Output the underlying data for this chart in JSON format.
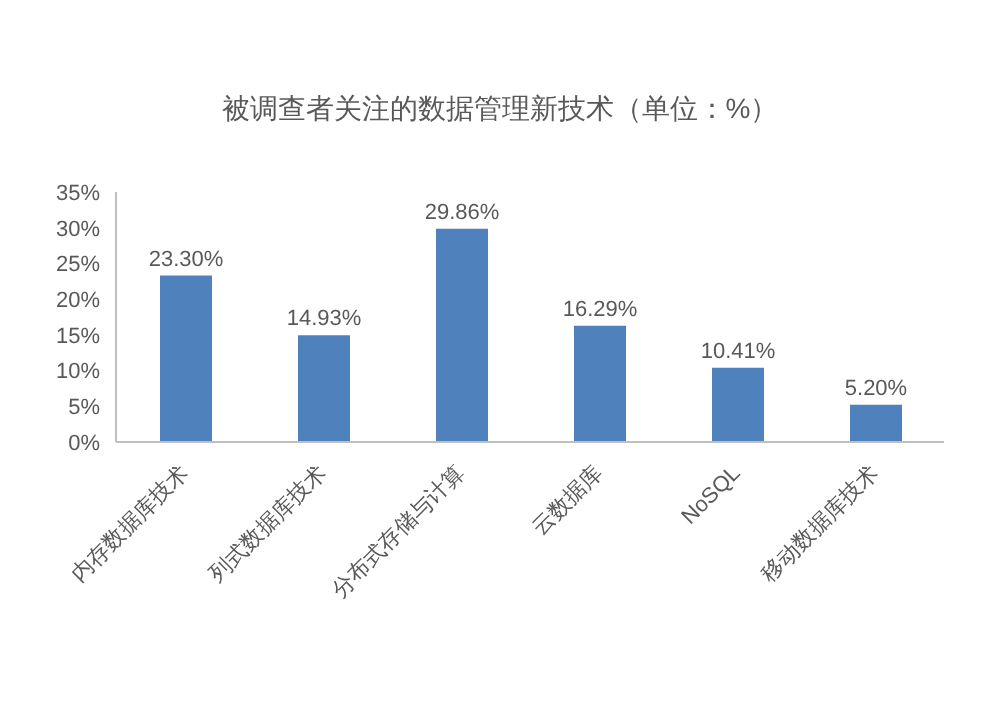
{
  "chart_data": {
    "type": "bar",
    "title": "被调查者关注的数据管理新技术（单位：%）",
    "categories": [
      "内存数据库技术",
      "列式数据库技术",
      "分布式存储与计算",
      "云数据库",
      "NoSQL",
      "移动数据库技术"
    ],
    "values": [
      23.3,
      14.93,
      29.86,
      16.29,
      10.41,
      5.2
    ],
    "value_labels": [
      "23.30%",
      "14.93%",
      "29.86%",
      "16.29%",
      "10.41%",
      "5.20%"
    ],
    "color": "#4f81bd",
    "ylim": [
      0,
      35
    ],
    "yticks": [
      {
        "value": 0,
        "label": "0%"
      },
      {
        "value": 5,
        "label": "5%"
      },
      {
        "value": 10,
        "label": "10%"
      },
      {
        "value": 15,
        "label": "15%"
      },
      {
        "value": 20,
        "label": "20%"
      },
      {
        "value": 25,
        "label": "25%"
      },
      {
        "value": 30,
        "label": "30%"
      },
      {
        "value": 35,
        "label": "35%"
      }
    ]
  }
}
